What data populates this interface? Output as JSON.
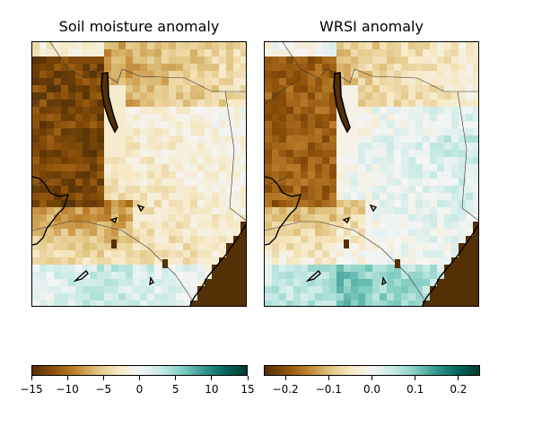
{
  "panels": [
    {
      "title": "Soil moisture anomaly",
      "colorbar": {
        "ticks": [
          "−15",
          "−10",
          "−5",
          "0",
          "5",
          "10",
          "15"
        ],
        "min": -15,
        "max": 15
      }
    },
    {
      "title": "WRSI anomaly",
      "colorbar": {
        "ticks": [
          "−0.2",
          "−0.1",
          "0.0",
          "0.1",
          "0.2"
        ],
        "min": -0.25,
        "max": 0.25
      }
    }
  ],
  "colormap": {
    "name": "BrBG",
    "stops": [
      "#543005",
      "#8c510a",
      "#bf812d",
      "#dfc27d",
      "#f6e8c3",
      "#f5f5f5",
      "#c7eae5",
      "#80cdc1",
      "#35978f",
      "#01665e",
      "#003c30"
    ]
  },
  "map_colors": {
    "ocean": "#543005",
    "border": "#333333",
    "lake_outline": "#000000"
  }
}
